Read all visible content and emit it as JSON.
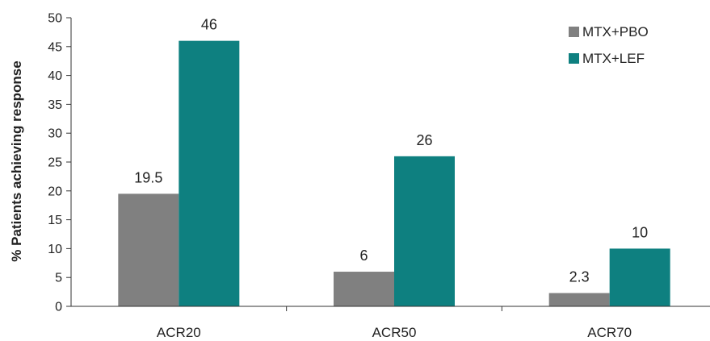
{
  "chart_data": {
    "type": "bar",
    "title": "",
    "xlabel": "",
    "ylabel": "% Patients achieving response",
    "ylim": [
      0,
      50
    ],
    "yticks": [
      0,
      5,
      10,
      15,
      20,
      25,
      30,
      35,
      40,
      45,
      50
    ],
    "grid": false,
    "legend_position": "top-right",
    "categories": [
      "ACR20",
      "ACR50",
      "ACR70"
    ],
    "series": [
      {
        "name": "MTX+PBO",
        "color": "#808080",
        "values": [
          19.5,
          6,
          2.3
        ],
        "labels": [
          "19.5",
          "6",
          "2.3"
        ]
      },
      {
        "name": "MTX+LEF",
        "color": "#0e8080",
        "values": [
          46,
          26,
          10
        ],
        "labels": [
          "46",
          "26",
          "10"
        ]
      }
    ]
  }
}
